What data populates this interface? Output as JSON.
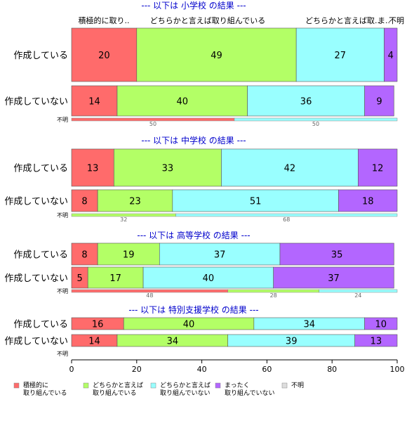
{
  "chart_data": {
    "type": "bar",
    "orientation": "horizontal",
    "stacked": true,
    "xlim": [
      0,
      100
    ],
    "xticks": [
      "0",
      "20",
      "40",
      "60",
      "80",
      "100"
    ],
    "column_headers": [
      "積極的に取り..",
      "どちらかと言えば取り組んでいる",
      "どちらかと言えば取..",
      "ま..",
      "不明"
    ],
    "categories": [
      {
        "key": "c1",
        "legend": [
          "積極的に",
          "取り組んでいる"
        ],
        "color": "#ff6b6b"
      },
      {
        "key": "c2",
        "legend": [
          "どちらかと言えば",
          "取り組んでいる"
        ],
        "color": "#b3ff66"
      },
      {
        "key": "c3",
        "legend": [
          "どちらかと言えば",
          "取り組んでいない"
        ],
        "color": "#99ffff"
      },
      {
        "key": "c4",
        "legend": [
          "まったく",
          "取り組んでいない"
        ],
        "color": "#b366ff"
      },
      {
        "key": "c5",
        "legend": [
          "不明"
        ],
        "color": "#dddddd"
      }
    ],
    "panels": [
      {
        "title": "--- 以下は 小学校 の結果 ---",
        "rows": [
          {
            "label": "作成している",
            "values": [
              20,
              49,
              27,
              4,
              0
            ]
          },
          {
            "label": "作成していない",
            "values": [
              14,
              40,
              36,
              9,
              0
            ]
          }
        ],
        "unknown_row": {
          "label": "不明",
          "values": [
            50,
            0,
            50,
            0,
            0
          ]
        }
      },
      {
        "title": "--- 以下は 中学校 の結果 ---",
        "rows": [
          {
            "label": "作成している",
            "values": [
              13,
              33,
              42,
              12,
              0
            ]
          },
          {
            "label": "作成していない",
            "values": [
              8,
              23,
              51,
              18,
              0
            ]
          }
        ],
        "unknown_row": {
          "label": "不明",
          "values": [
            0,
            32,
            68,
            0,
            0
          ]
        }
      },
      {
        "title": "--- 以下は 高等学校 の結果 ---",
        "rows": [
          {
            "label": "作成している",
            "values": [
              8,
              19,
              37,
              35,
              0
            ]
          },
          {
            "label": "作成していない",
            "values": [
              5,
              17,
              40,
              37,
              0
            ]
          }
        ],
        "unknown_row": {
          "label": "不明",
          "values": [
            48,
            28,
            24,
            0,
            0
          ]
        }
      },
      {
        "title": "--- 以下は 特別支援学校 の結果 ---",
        "rows": [
          {
            "label": "作成している",
            "values": [
              16,
              40,
              34,
              10,
              0
            ]
          },
          {
            "label": "作成していない",
            "values": [
              14,
              34,
              39,
              13,
              0
            ]
          }
        ],
        "unknown_row": {
          "label": "不明",
          "values": [
            0,
            0,
            0,
            0,
            0
          ]
        }
      }
    ]
  }
}
